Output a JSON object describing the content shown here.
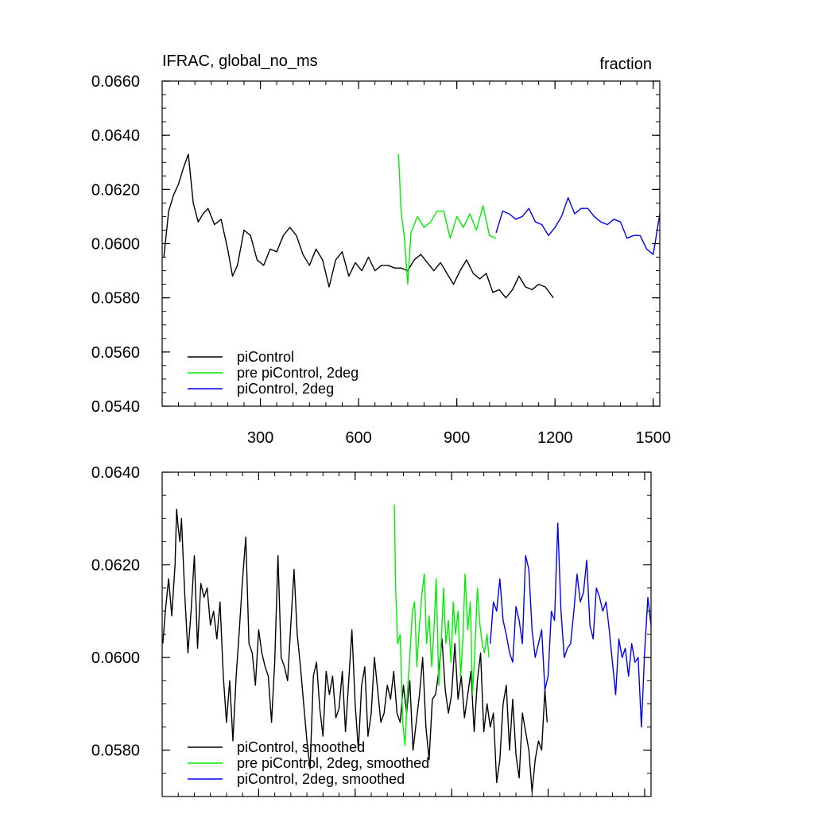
{
  "chart_data": [
    {
      "type": "line",
      "title": "IFRAC, global_no_ms",
      "units": "fraction",
      "xlim": [
        0,
        1520
      ],
      "ylim": [
        0.054,
        0.066
      ],
      "xticks": [
        {
          "value": 300,
          "label": "300"
        },
        {
          "value": 600,
          "label": "600"
        },
        {
          "value": 900,
          "label": "900"
        },
        {
          "value": 1200,
          "label": "1200"
        },
        {
          "value": 1500,
          "label": "1500"
        }
      ],
      "yticks": [
        {
          "value": 0.054,
          "label": "0.0540"
        },
        {
          "value": 0.056,
          "label": "0.0560"
        },
        {
          "value": 0.058,
          "label": "0.0580"
        },
        {
          "value": 0.06,
          "label": "0.0600"
        },
        {
          "value": 0.062,
          "label": "0.0620"
        },
        {
          "value": 0.064,
          "label": "0.0640"
        },
        {
          "value": 0.066,
          "label": "0.0660"
        }
      ],
      "legend_position": "bottom-left",
      "series": [
        {
          "name": "piControl",
          "color": "#000000",
          "x": [
            5,
            20,
            35,
            50,
            65,
            80,
            95,
            110,
            125,
            140,
            160,
            180,
            200,
            215,
            230,
            250,
            270,
            290,
            310,
            330,
            350,
            370,
            390,
            410,
            430,
            450,
            470,
            490,
            510,
            530,
            550,
            570,
            590,
            610,
            630,
            650,
            670,
            690,
            710,
            730,
            750,
            770,
            790,
            810,
            830,
            850,
            870,
            890,
            910,
            930,
            950,
            970,
            990,
            1010,
            1030,
            1050,
            1070,
            1090,
            1110,
            1130,
            1150,
            1170,
            1195
          ],
          "y": [
            0.0595,
            0.0612,
            0.0618,
            0.0622,
            0.0628,
            0.0633,
            0.0615,
            0.0608,
            0.0611,
            0.0613,
            0.0607,
            0.0609,
            0.0598,
            0.0588,
            0.0592,
            0.0605,
            0.0603,
            0.0594,
            0.0592,
            0.0598,
            0.0597,
            0.0603,
            0.0606,
            0.0603,
            0.0596,
            0.0592,
            0.0598,
            0.0594,
            0.0584,
            0.0594,
            0.0597,
            0.0588,
            0.0593,
            0.059,
            0.0595,
            0.059,
            0.0592,
            0.0592,
            0.0591,
            0.0591,
            0.059,
            0.0594,
            0.0596,
            0.0593,
            0.059,
            0.0593,
            0.0589,
            0.0585,
            0.059,
            0.0594,
            0.0589,
            0.0587,
            0.0589,
            0.0582,
            0.0583,
            0.058,
            0.0583,
            0.0588,
            0.0584,
            0.0583,
            0.0585,
            0.0584,
            0.058
          ]
        },
        {
          "name": "pre piControl, 2deg",
          "color": "#00ee00",
          "x": [
            722,
            730,
            740,
            750,
            760,
            780,
            800,
            820,
            840,
            860,
            880,
            900,
            920,
            940,
            960,
            980,
            1000,
            1020
          ],
          "y": [
            0.0633,
            0.0612,
            0.0602,
            0.0585,
            0.0604,
            0.061,
            0.0606,
            0.0608,
            0.0612,
            0.0612,
            0.0602,
            0.061,
            0.0606,
            0.0611,
            0.0605,
            0.0614,
            0.0603,
            0.0602
          ]
        },
        {
          "name": "piControl, 2deg",
          "color": "#0000ee",
          "x": [
            1020,
            1040,
            1060,
            1080,
            1100,
            1120,
            1140,
            1160,
            1180,
            1200,
            1220,
            1240,
            1260,
            1280,
            1300,
            1320,
            1340,
            1360,
            1380,
            1400,
            1420,
            1440,
            1460,
            1480,
            1500,
            1520
          ],
          "y": [
            0.0604,
            0.0612,
            0.0611,
            0.0609,
            0.061,
            0.0613,
            0.0608,
            0.0607,
            0.0603,
            0.0606,
            0.061,
            0.0617,
            0.0611,
            0.0613,
            0.0613,
            0.061,
            0.0608,
            0.0607,
            0.0609,
            0.0608,
            0.0602,
            0.0603,
            0.0603,
            0.0598,
            0.0596,
            0.0611
          ]
        }
      ]
    },
    {
      "type": "line",
      "xlim": [
        0,
        1520
      ],
      "ylim": [
        0.057,
        0.064
      ],
      "xticks": [
        {
          "value": 300,
          "label": ""
        },
        {
          "value": 600,
          "label": ""
        },
        {
          "value": 900,
          "label": ""
        },
        {
          "value": 1200,
          "label": ""
        },
        {
          "value": 1500,
          "label": ""
        }
      ],
      "yticks": [
        {
          "value": 0.058,
          "label": "0.0580"
        },
        {
          "value": 0.06,
          "label": "0.0600"
        },
        {
          "value": 0.062,
          "label": "0.0620"
        },
        {
          "value": 0.064,
          "label": "0.0640"
        }
      ],
      "legend_position": "bottom-left",
      "series": [
        {
          "name": "piControl, smoothed",
          "color": "#000000",
          "x": [
            2,
            10,
            20,
            30,
            40,
            45,
            50,
            55,
            60,
            70,
            80,
            90,
            100,
            110,
            120,
            130,
            140,
            150,
            160,
            170,
            180,
            190,
            200,
            210,
            220,
            230,
            240,
            250,
            260,
            270,
            280,
            290,
            300,
            310,
            320,
            330,
            340,
            350,
            360,
            370,
            380,
            390,
            400,
            410,
            420,
            430,
            440,
            450,
            460,
            470,
            480,
            490,
            500,
            510,
            520,
            530,
            540,
            550,
            560,
            570,
            580,
            590,
            600,
            610,
            620,
            630,
            640,
            650,
            660,
            670,
            680,
            690,
            700,
            710,
            720,
            730,
            740,
            750,
            760,
            770,
            780,
            790,
            800,
            810,
            820,
            830,
            840,
            850,
            860,
            870,
            880,
            890,
            900,
            910,
            920,
            930,
            940,
            950,
            960,
            970,
            980,
            990,
            1000,
            1010,
            1020,
            1030,
            1040,
            1050,
            1060,
            1070,
            1080,
            1090,
            1100,
            1110,
            1120,
            1130,
            1140,
            1150,
            1160,
            1170,
            1180,
            1190,
            1197
          ],
          "y": [
            0.0603,
            0.061,
            0.0617,
            0.0609,
            0.062,
            0.0632,
            0.0628,
            0.0625,
            0.063,
            0.0614,
            0.0601,
            0.061,
            0.0622,
            0.0602,
            0.0616,
            0.0613,
            0.0615,
            0.0607,
            0.061,
            0.0604,
            0.0612,
            0.0596,
            0.0586,
            0.0595,
            0.0582,
            0.0596,
            0.0606,
            0.0617,
            0.0626,
            0.0603,
            0.0601,
            0.0594,
            0.0606,
            0.0601,
            0.0598,
            0.0596,
            0.0586,
            0.0599,
            0.0622,
            0.06,
            0.0598,
            0.0595,
            0.0607,
            0.0619,
            0.0605,
            0.0598,
            0.059,
            0.0582,
            0.0576,
            0.0596,
            0.0599,
            0.0589,
            0.0583,
            0.0597,
            0.0592,
            0.0596,
            0.0587,
            0.0589,
            0.0597,
            0.0584,
            0.0595,
            0.0606,
            0.059,
            0.058,
            0.0594,
            0.0598,
            0.0583,
            0.0588,
            0.06,
            0.0593,
            0.0586,
            0.0588,
            0.0594,
            0.0591,
            0.0597,
            0.0588,
            0.0586,
            0.0594,
            0.0588,
            0.0595,
            0.058,
            0.0586,
            0.0592,
            0.06,
            0.0585,
            0.0578,
            0.0591,
            0.0592,
            0.0597,
            0.0604,
            0.0593,
            0.0588,
            0.0592,
            0.0603,
            0.0591,
            0.0596,
            0.0587,
            0.0592,
            0.0597,
            0.0584,
            0.0595,
            0.0601,
            0.0584,
            0.059,
            0.0585,
            0.0588,
            0.0573,
            0.0578,
            0.059,
            0.0594,
            0.058,
            0.0591,
            0.0579,
            0.0574,
            0.0588,
            0.0584,
            0.058,
            0.0571,
            0.0578,
            0.0582,
            0.058,
            0.0593,
            0.0586
          ]
        },
        {
          "name": "pre piControl, 2deg, smoothed",
          "color": "#00ee00",
          "x": [
            722,
            726,
            732,
            740,
            748,
            755,
            762,
            770,
            778,
            785,
            792,
            800,
            808,
            815,
            822,
            830,
            838,
            845,
            852,
            860,
            868,
            875,
            882,
            890,
            898,
            905,
            912,
            920,
            928,
            935,
            942,
            950,
            958,
            965,
            972,
            980,
            988,
            995,
            1002,
            1010,
            1016
          ],
          "y": [
            0.0633,
            0.0615,
            0.0603,
            0.0605,
            0.0586,
            0.0581,
            0.0592,
            0.06,
            0.061,
            0.0612,
            0.0598,
            0.0607,
            0.0614,
            0.0618,
            0.0603,
            0.0609,
            0.0598,
            0.0606,
            0.0617,
            0.0594,
            0.0604,
            0.0615,
            0.0603,
            0.0608,
            0.0599,
            0.0612,
            0.0605,
            0.061,
            0.0596,
            0.0604,
            0.0618,
            0.0606,
            0.0612,
            0.0592,
            0.0601,
            0.0615,
            0.0607,
            0.0603,
            0.0601,
            0.0605,
            0.06
          ]
        },
        {
          "name": "piControl, 2deg, smoothed",
          "color": "#0000ee",
          "x": [
            1020,
            1030,
            1040,
            1050,
            1060,
            1070,
            1080,
            1090,
            1100,
            1110,
            1120,
            1130,
            1140,
            1150,
            1160,
            1170,
            1180,
            1190,
            1200,
            1210,
            1220,
            1230,
            1240,
            1250,
            1260,
            1270,
            1280,
            1290,
            1300,
            1310,
            1320,
            1330,
            1340,
            1350,
            1360,
            1370,
            1380,
            1390,
            1400,
            1410,
            1420,
            1430,
            1440,
            1450,
            1460,
            1470,
            1480,
            1490,
            1500,
            1510,
            1520
          ],
          "y": [
            0.0603,
            0.0612,
            0.061,
            0.0617,
            0.0608,
            0.0605,
            0.0601,
            0.0599,
            0.0611,
            0.0608,
            0.0603,
            0.0622,
            0.0619,
            0.0606,
            0.06,
            0.0603,
            0.0606,
            0.0593,
            0.0596,
            0.061,
            0.0608,
            0.0629,
            0.061,
            0.06,
            0.0602,
            0.0603,
            0.061,
            0.0618,
            0.0612,
            0.0614,
            0.0621,
            0.0607,
            0.0604,
            0.0615,
            0.0613,
            0.061,
            0.0612,
            0.0606,
            0.0599,
            0.0592,
            0.0604,
            0.06,
            0.0602,
            0.0596,
            0.0603,
            0.0599,
            0.06,
            0.0585,
            0.0601,
            0.0613,
            0.0607
          ]
        }
      ]
    }
  ]
}
